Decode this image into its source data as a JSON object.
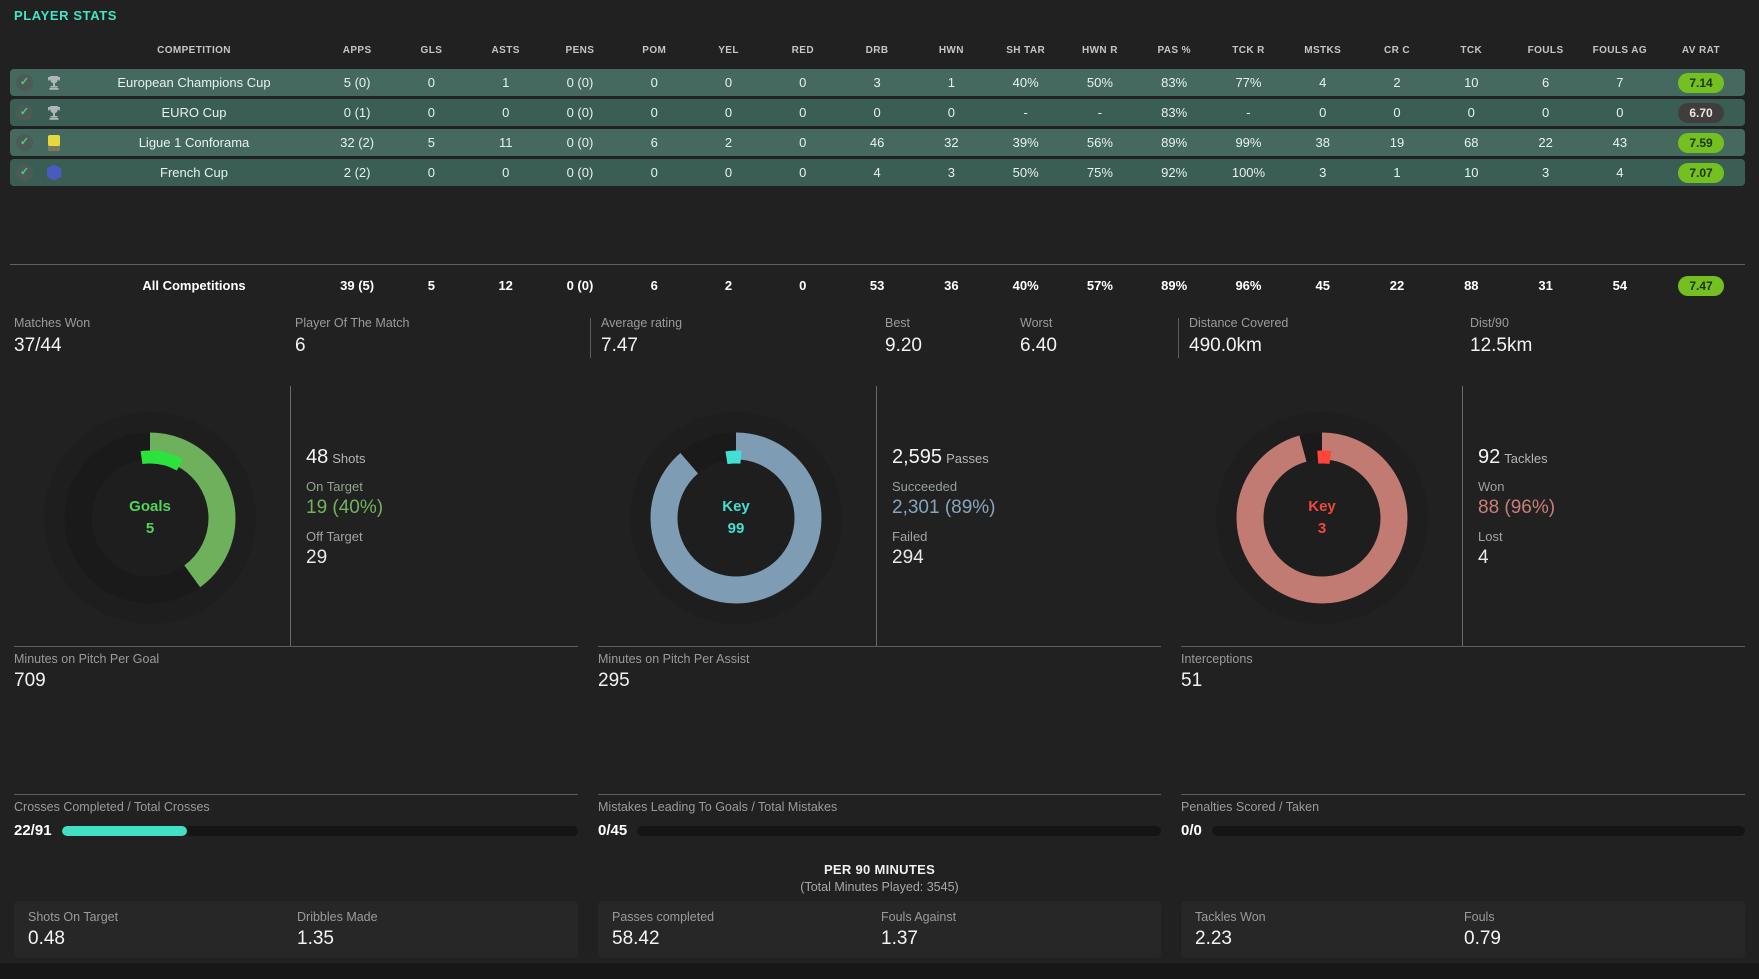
{
  "page": {
    "title": "PLAYER STATS",
    "accent": "#41e0c5",
    "background": "#212121"
  },
  "table": {
    "columns": [
      "COMPETITION",
      "APPS",
      "GLS",
      "ASTS",
      "PENS",
      "POM",
      "YEL",
      "RED",
      "DRB",
      "HWN",
      "SH TAR",
      "HWN R",
      "PAS %",
      "TCK R",
      "MSTKS",
      "CR C",
      "TCK",
      "FOULS",
      "FOULS AG",
      "AV RAT"
    ],
    "rows": [
      {
        "competition": "European Champions Cup",
        "icon": "champions-cup-trophy-icon",
        "icon_type": "trophy",
        "icon_color": "#aeb6ba",
        "values": [
          "5 (0)",
          "0",
          "1",
          "0 (0)",
          "0",
          "0",
          "0",
          "3",
          "1",
          "40%",
          "50%",
          "83%",
          "77%",
          "4",
          "2",
          "10",
          "6",
          "7"
        ],
        "rating": "7.14",
        "rating_bg": "#74c021",
        "rating_text": "#1d3309"
      },
      {
        "competition": "EURO Cup",
        "icon": "euro-cup-trophy-icon",
        "icon_type": "trophy",
        "icon_color": "#aeb6ba",
        "values": [
          "0 (1)",
          "0",
          "0",
          "0 (0)",
          "0",
          "0",
          "0",
          "0",
          "0",
          "-",
          "-",
          "83%",
          "-",
          "0",
          "0",
          "0",
          "0",
          "0"
        ],
        "rating": "6.70",
        "rating_bg": "#413d3d",
        "rating_text": "#efe3e3"
      },
      {
        "competition": "Ligue 1 Conforama",
        "icon": "ligue1-badge-icon",
        "icon_type": "rect-badge",
        "icon_color": "#e6d93c",
        "values": [
          "32 (2)",
          "5",
          "11",
          "0 (0)",
          "6",
          "2",
          "0",
          "46",
          "32",
          "39%",
          "56%",
          "89%",
          "99%",
          "38",
          "19",
          "68",
          "22",
          "43"
        ],
        "rating": "7.59",
        "rating_bg": "#74c021",
        "rating_text": "#1d3309"
      },
      {
        "competition": "French Cup",
        "icon": "french-cup-badge-icon",
        "icon_type": "hex-badge",
        "icon_color": "#4a5bc0",
        "values": [
          "2 (2)",
          "0",
          "0",
          "0 (0)",
          "0",
          "0",
          "0",
          "4",
          "3",
          "50%",
          "75%",
          "92%",
          "100%",
          "3",
          "1",
          "10",
          "3",
          "4"
        ],
        "rating": "7.07",
        "rating_bg": "#74c021",
        "rating_text": "#1d3309"
      }
    ],
    "totals": {
      "label": "All Competitions",
      "values": [
        "39 (5)",
        "5",
        "12",
        "0 (0)",
        "6",
        "2",
        "0",
        "53",
        "36",
        "40%",
        "57%",
        "89%",
        "96%",
        "45",
        "22",
        "88",
        "31",
        "54"
      ],
      "rating": "7.47",
      "rating_bg": "#74c021",
      "rating_text": "#1d3309"
    }
  },
  "summary_stats": [
    {
      "label": "Matches Won",
      "value": "37/44"
    },
    {
      "label": "Player Of The Match",
      "value": "6"
    },
    {
      "label": "Average rating",
      "value": "7.47"
    },
    {
      "label": "Best",
      "value": "9.20"
    },
    {
      "label": "Worst",
      "value": "6.40"
    },
    {
      "label": "Distance Covered",
      "value": "490.0km"
    },
    {
      "label": "Dist/90",
      "value": "12.5km"
    }
  ],
  "donut_panels": [
    {
      "center_label": "Goals",
      "center_value": "5",
      "center_color": "#53d35d",
      "ring_color": "#6fb05c",
      "ring_percent": 40,
      "key_color": "#2be33c",
      "key_percent": 10.4,
      "key_offset_deg": -8,
      "total_value": "48",
      "total_label": "Shots",
      "stat1_label": "On Target",
      "stat1_value": "19 (40%)",
      "stat1_label_color": "#8fa589",
      "stat1_value_color": "#72b35e",
      "stat2_label": "Off Target",
      "stat2_value": "29",
      "footer_label": "Minutes on Pitch Per Goal",
      "footer_value": "709"
    },
    {
      "center_label": "Key",
      "center_value": "99",
      "center_color": "#43dfd4",
      "ring_color": "#7e9cb4",
      "ring_percent": 88.7,
      "key_color": "#43dfd4",
      "key_percent": 3.8,
      "key_offset_deg": -9,
      "total_value": "2,595",
      "total_label": "Passes",
      "stat1_label": "Succeeded",
      "stat1_value": "2,301 (89%)",
      "stat1_label_color": "#95a09e",
      "stat1_value_color": "#87a5bd",
      "stat2_label": "Failed",
      "stat2_value": "294",
      "footer_label": "Minutes on Pitch Per Assist",
      "footer_value": "295"
    },
    {
      "center_label": "Key",
      "center_value": "3",
      "center_color": "#f4473c",
      "ring_color": "#c17b73",
      "ring_percent": 95.7,
      "key_color": "#ff4438",
      "key_percent": 3.3,
      "key_offset_deg": -4,
      "total_value": "92",
      "total_label": "Tackles",
      "stat1_label": "Won",
      "stat1_value": "88 (96%)",
      "stat1_label_color": "#a39d9b",
      "stat1_value_color": "#ca7f76",
      "stat2_label": "Lost",
      "stat2_value": "4",
      "footer_label": "Interceptions",
      "footer_value": "51"
    }
  ],
  "progress_rows": [
    {
      "label": "Crosses Completed / Total Crosses",
      "value": "22/91",
      "percent": 24.2,
      "fill_color": "#41e0c5"
    },
    {
      "label": "Mistakes Leading To Goals / Total Mistakes",
      "value": "0/45",
      "percent": 0,
      "fill_color": "#41e0c5"
    },
    {
      "label": "Penalties Scored / Taken",
      "value": "0/0",
      "percent": 0,
      "fill_color": "#41e0c5"
    }
  ],
  "per90": {
    "title": "PER 90 MINUTES",
    "subtitle": "(Total Minutes Played: 3545)",
    "cards": [
      {
        "stats": [
          {
            "label": "Shots On Target",
            "value": "0.48"
          },
          {
            "label": "Dribbles Made",
            "value": "1.35"
          }
        ]
      },
      {
        "stats": [
          {
            "label": "Passes completed",
            "value": "58.42"
          },
          {
            "label": "Fouls Against",
            "value": "1.37"
          }
        ]
      },
      {
        "stats": [
          {
            "label": "Tackles Won",
            "value": "2.23"
          },
          {
            "label": "Fouls",
            "value": "0.79"
          }
        ]
      }
    ]
  }
}
